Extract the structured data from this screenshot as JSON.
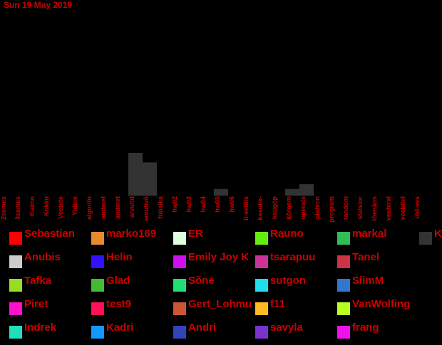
{
  "chart_data": {
    "type": "bar",
    "title": "Sun 19 May 2019",
    "xlabel": "",
    "ylabel": "",
    "ylim": [
      0,
      6
    ],
    "grid": false,
    "legend_position": "bottom",
    "categories": [
      "2semes",
      "3semes",
      "Kaimo",
      "Kokku",
      "Veebite",
      "Yldine",
      "algoritn",
      "andmet",
      "andmet",
      "arvutid",
      "arvutivõ",
      "füüsika",
      "hw02",
      "hw03",
      "hw04",
      "hw05",
      "hw06",
      "it-eetilis",
      "kasulik-",
      "kaugõp",
      "kõrgem",
      "operats",
      "platvon",
      "program",
      "random",
      "statsior",
      "tõenäos",
      "veebiral",
      "veebitel",
      "üld-ves"
    ],
    "values": [
      0,
      0,
      0,
      0,
      0,
      0,
      0,
      0,
      0,
      4.5,
      3.5,
      0,
      0,
      0,
      0,
      0.7,
      0,
      0,
      0,
      0,
      0.7,
      1.2,
      0,
      0,
      0,
      0,
      0,
      0,
      0,
      0
    ],
    "bar_color": "#333333",
    "text_color": "#cc0000",
    "legend": [
      {
        "name": "Sebastian",
        "color": "#ff0000"
      },
      {
        "name": "marko169",
        "color": "#e68a2e"
      },
      {
        "name": "ER",
        "color": "#ddffdd"
      },
      {
        "name": "Rauno",
        "color": "#66ee11"
      },
      {
        "name": "markal",
        "color": "#33bb55"
      },
      {
        "name": "K",
        "color": "#333333"
      },
      {
        "name": "Anubis",
        "color": "#cccccc"
      },
      {
        "name": "Helin",
        "color": "#3311ff"
      },
      {
        "name": "Emily Joy K",
        "color": "#cc11ee"
      },
      {
        "name": "tsarapuu",
        "color": "#cc3399"
      },
      {
        "name": "Tanel",
        "color": "#cc3344"
      },
      {
        "name": "Tafka",
        "color": "#99dd22"
      },
      {
        "name": "Glad",
        "color": "#44bb33"
      },
      {
        "name": "Sõne",
        "color": "#22dd77"
      },
      {
        "name": "sutgon",
        "color": "#22ddee"
      },
      {
        "name": "SiimM",
        "color": "#3377cc"
      },
      {
        "name": "Piret",
        "color": "#ff11cc"
      },
      {
        "name": "test9",
        "color": "#ff1155"
      },
      {
        "name": "Gert_Lohmu",
        "color": "#cc5533"
      },
      {
        "name": "f11",
        "color": "#ffbb22"
      },
      {
        "name": "VanWolfing",
        "color": "#bbff22"
      },
      {
        "name": "Indrek",
        "color": "#22ddbb"
      },
      {
        "name": "Kadri",
        "color": "#1199ff"
      },
      {
        "name": "Andri",
        "color": "#3344bb"
      },
      {
        "name": "savyla",
        "color": "#7733cc"
      },
      {
        "name": "frang",
        "color": "#ee11ee"
      }
    ]
  }
}
